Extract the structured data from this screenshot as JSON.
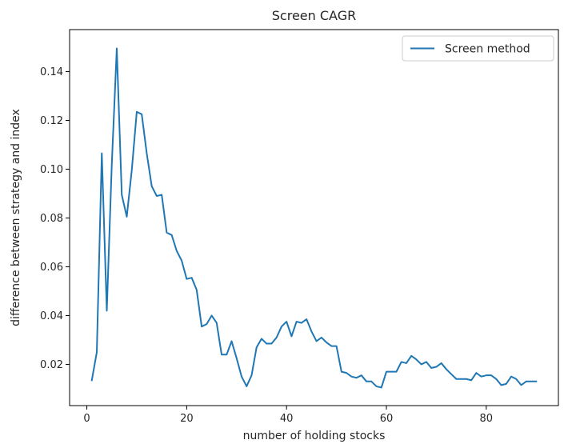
{
  "chart_data": {
    "type": "line",
    "title": "Screen CAGR",
    "xlabel": "number of holding stocks",
    "ylabel": "difference between strategy and index",
    "xlim": [
      -3.45,
      94.45
    ],
    "ylim": [
      0.0031,
      0.1572
    ],
    "xticks": [
      0,
      20,
      40,
      60,
      80
    ],
    "yticks": [
      0.02,
      0.04,
      0.06,
      0.08,
      0.1,
      0.12,
      0.14
    ],
    "ytick_labels": [
      "0.02",
      "0.04",
      "0.06",
      "0.08",
      "0.10",
      "0.12",
      "0.14"
    ],
    "grid": false,
    "legend_position": "top-right",
    "series": [
      {
        "name": "Screen method",
        "color": "#1f77b4",
        "x": [
          1,
          2,
          3,
          4,
          5,
          6,
          7,
          8,
          9,
          10,
          11,
          12,
          13,
          14,
          15,
          16,
          17,
          18,
          19,
          20,
          21,
          22,
          23,
          24,
          25,
          26,
          27,
          28,
          29,
          30,
          31,
          32,
          33,
          34,
          35,
          36,
          37,
          38,
          39,
          40,
          41,
          42,
          43,
          44,
          45,
          46,
          47,
          48,
          49,
          50,
          51,
          52,
          53,
          54,
          55,
          56,
          57,
          58,
          59,
          60,
          61,
          62,
          63,
          64,
          65,
          66,
          67,
          68,
          69,
          70,
          71,
          72,
          73,
          74,
          75,
          76,
          77,
          78,
          79,
          80,
          81,
          82,
          83,
          84,
          85,
          86,
          87,
          88,
          89,
          90
        ],
        "y": [
          0.0135,
          0.025,
          0.1065,
          0.042,
          0.102,
          0.1495,
          0.0895,
          0.0805,
          0.0995,
          0.1235,
          0.1225,
          0.1065,
          0.093,
          0.089,
          0.0895,
          0.074,
          0.073,
          0.0665,
          0.0625,
          0.055,
          0.0555,
          0.0505,
          0.0355,
          0.0365,
          0.04,
          0.037,
          0.024,
          0.024,
          0.0295,
          0.0225,
          0.015,
          0.011,
          0.0155,
          0.027,
          0.0305,
          0.0285,
          0.0285,
          0.031,
          0.0355,
          0.0375,
          0.0315,
          0.0375,
          0.037,
          0.0385,
          0.0335,
          0.0295,
          0.031,
          0.029,
          0.0275,
          0.0275,
          0.017,
          0.0165,
          0.015,
          0.0145,
          0.0155,
          0.013,
          0.013,
          0.011,
          0.0105,
          0.017,
          0.017,
          0.017,
          0.021,
          0.0205,
          0.0235,
          0.022,
          0.02,
          0.021,
          0.0185,
          0.019,
          0.0205,
          0.018,
          0.016,
          0.014,
          0.014,
          0.014,
          0.0135,
          0.0165,
          0.015,
          0.0155,
          0.0155,
          0.014,
          0.0115,
          0.012,
          0.015,
          0.014,
          0.0115,
          0.013,
          0.013,
          0.013
        ]
      }
    ]
  }
}
